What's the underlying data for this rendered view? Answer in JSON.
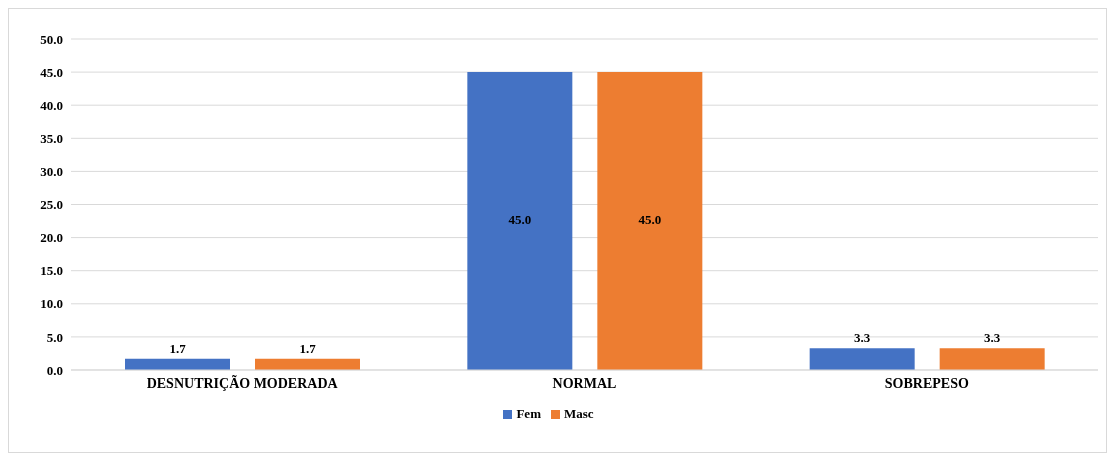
{
  "chart_data": {
    "type": "bar",
    "categories": [
      "DESNUTRIÇÃO MODERADA",
      "NORMAL",
      "SOBREPESO"
    ],
    "series": [
      {
        "name": "Fem",
        "color": "#4472c4",
        "values": [
          1.7,
          45.0,
          3.3
        ],
        "value_labels": [
          "1.7",
          "45.0",
          "3.3"
        ]
      },
      {
        "name": "Masc",
        "color": "#ed7d31",
        "values": [
          1.7,
          45.0,
          3.3
        ],
        "value_labels": [
          "1.7",
          "45.0",
          "3.3"
        ]
      }
    ],
    "ylim": [
      0,
      50
    ],
    "yticks": [
      {
        "value": 0,
        "label": "0.0"
      },
      {
        "value": 5,
        "label": "5.0"
      },
      {
        "value": 10,
        "label": "10.0"
      },
      {
        "value": 15,
        "label": "15.0"
      },
      {
        "value": 20,
        "label": "20.0"
      },
      {
        "value": 25,
        "label": "25.0"
      },
      {
        "value": 30,
        "label": "30.0"
      },
      {
        "value": 35,
        "label": "35.0"
      },
      {
        "value": 40,
        "label": "40.0"
      },
      {
        "value": 45,
        "label": "45.0"
      },
      {
        "value": 50,
        "label": "50.0"
      }
    ],
    "grid": "y",
    "legend": "bottom"
  }
}
